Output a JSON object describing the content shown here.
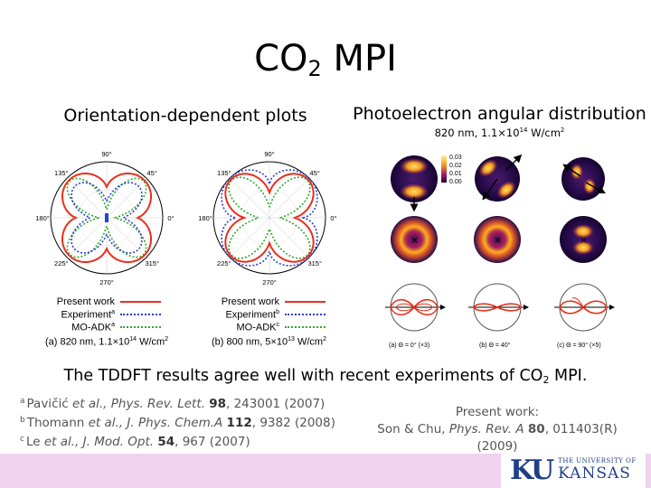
{
  "slide": {
    "title_main": "CO",
    "title_sub": "2",
    "title_end": " MPI",
    "left_heading": "Orientation-dependent plots",
    "right_heading": "Photoelectron angular distribution",
    "right_subheading_a": "820 nm, 1.1×10",
    "right_subheading_exp": "14",
    "right_subheading_b": " W/cm",
    "right_subheading_exp2": "2",
    "conclusion_a": "The TDDFT results agree well with recent experiments of CO",
    "conclusion_sub": "2",
    "conclusion_b": " MPI."
  },
  "polar_plots": [
    {
      "angle_labels": [
        "90°",
        "45°",
        "0°",
        "315°",
        "270°",
        "225°",
        "180°",
        "135°"
      ],
      "legend": [
        {
          "label": "Present work",
          "sup": "",
          "color": "#e8301c",
          "style": "solid"
        },
        {
          "label": "Experiment",
          "sup": "a",
          "color": "#2a3fd6",
          "style": "dotted"
        },
        {
          "label": "MO-ADK",
          "sup": "a",
          "color": "#2ea82e",
          "style": "dotted"
        }
      ],
      "caption_a": "(a) 820 nm, 1.1×10",
      "caption_exp": "14",
      "caption_b": " W/cm",
      "caption_exp2": "2"
    },
    {
      "angle_labels": [
        "90°",
        "45°",
        "0°",
        "315°",
        "270°",
        "225°",
        "180°",
        "135°"
      ],
      "legend": [
        {
          "label": "Present work",
          "sup": "",
          "color": "#e8301c",
          "style": "solid"
        },
        {
          "label": "Experiment",
          "sup": "b",
          "color": "#2a3fd6",
          "style": "dotted"
        },
        {
          "label": "MO-ADK",
          "sup": "c",
          "color": "#2ea82e",
          "style": "dotted"
        }
      ],
      "caption_a": "(b) 800 nm, 5×10",
      "caption_exp": "13",
      "caption_b": " W/cm",
      "caption_exp2": "2"
    }
  ],
  "pad": {
    "colorbar_ticks": [
      "0.03",
      "0.02",
      "0.01",
      "0.00"
    ],
    "captions": [
      "(a) Θ = 0° (×3)",
      "(b) Θ = 40°",
      "(c) Θ = 90° (×5)"
    ]
  },
  "references": [
    {
      "tag": "a",
      "authors": "Pavičić ",
      "etal": "et al.",
      "journal": ", Phys. Rev. Lett. ",
      "volume": "98",
      "rest": ", 243001 (2007)"
    },
    {
      "tag": "b",
      "authors": "Thomann ",
      "etal": "et al.",
      "journal": ", J. Phys. Chem.A ",
      "volume": "112",
      "rest": ", 9382 (2008)"
    },
    {
      "tag": "c",
      "authors": "Le ",
      "etal": "et al.",
      "journal": ", J. Mod. Opt. ",
      "volume": "54",
      "rest": ", 967 (2007)"
    }
  ],
  "present_work": {
    "label": "Present work:",
    "authors": "Son & Chu, ",
    "journal": "Phys. Rev. A ",
    "volume": "80",
    "rest": ", 011403(R) (2009)"
  },
  "logo": {
    "mark": "KU",
    "line1": "THE UNIVERSITY OF",
    "line2": "KANSAS",
    "color": "#1f3f8a"
  }
}
